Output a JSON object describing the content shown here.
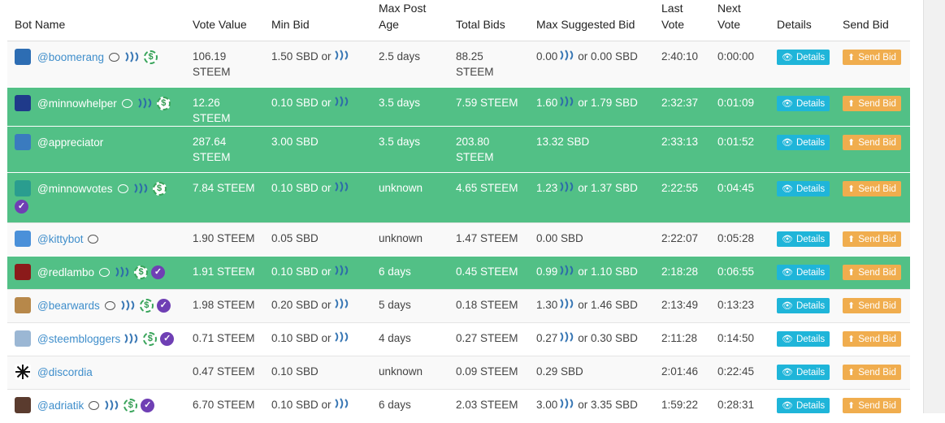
{
  "headers": {
    "bot_name": "Bot Name",
    "vote_value": "Vote Value",
    "min_bid": "Min Bid",
    "max_post_age": "Max Post Age",
    "total_bids": "Total Bids",
    "max_suggested_bid": "Max Suggested Bid",
    "last_vote": "Last Vote",
    "next_vote": "Next Vote",
    "details": "Details",
    "send_bid": "Send Bid"
  },
  "buttons": {
    "details": "Details",
    "send_bid": "Send Bid"
  },
  "colors": {
    "green_row": "#52c086",
    "details_btn": "#1fb5d9",
    "send_btn": "#f0ad4e",
    "link": "#3f8ecb",
    "verified": "#6f3fb4"
  },
  "rows": [
    {
      "name": "@boomerang",
      "style": "white",
      "avatar_color": "#2d6db3",
      "icons": [
        "chat",
        "steem",
        "dollar"
      ],
      "vote_value": "106.19 STEEM",
      "min_bid": "1.50 SBD or",
      "min_bid_steem": true,
      "max_age": "2.5 days",
      "total_bids": "88.25 STEEM",
      "max_suggested_a": "0.00",
      "max_suggested_steem": true,
      "max_suggested_b": "or 0.00 SBD",
      "last_vote": "2:40:10",
      "next_vote": "0:00:00"
    },
    {
      "name": "@minnowhelper",
      "style": "green",
      "avatar_color": "#1f3a8a",
      "icons": [
        "chat",
        "steem",
        "dollar"
      ],
      "vote_value": "12.26 STEEM",
      "min_bid": "0.10 SBD or",
      "min_bid_steem": true,
      "max_age": "3.5 days",
      "total_bids": "7.59 STEEM",
      "max_suggested_a": "1.60",
      "max_suggested_steem": true,
      "max_suggested_b": "or 1.79 SBD",
      "last_vote": "2:32:37",
      "next_vote": "0:01:09"
    },
    {
      "name": "@appreciator",
      "style": "green",
      "avatar_color": "#3a7bbf",
      "icons": [],
      "vote_value": "287.64 STEEM",
      "min_bid": "3.00 SBD",
      "min_bid_steem": false,
      "max_age": "3.5 days",
      "total_bids": "203.80 STEEM",
      "max_suggested_a": "13.32 SBD",
      "max_suggested_steem": false,
      "max_suggested_b": "",
      "last_vote": "2:33:13",
      "next_vote": "0:01:52"
    },
    {
      "name": "@minnowvotes",
      "style": "green",
      "avatar_color": "#2a9d8f",
      "icons": [
        "chat",
        "steem",
        "dollar",
        "verified"
      ],
      "vote_value": "7.84 STEEM",
      "min_bid": "0.10 SBD or",
      "min_bid_steem": true,
      "max_age": "unknown",
      "total_bids": "4.65 STEEM",
      "max_suggested_a": "1.23",
      "max_suggested_steem": true,
      "max_suggested_b": "or 1.37 SBD",
      "last_vote": "2:22:55",
      "next_vote": "0:04:45"
    },
    {
      "name": "@kittybot",
      "style": "white",
      "avatar_color": "#4a90d9",
      "icons": [
        "chat"
      ],
      "vote_value": "1.90 STEEM",
      "min_bid": "0.05 SBD",
      "min_bid_steem": false,
      "max_age": "unknown",
      "total_bids": "1.47 STEEM",
      "max_suggested_a": "0.00 SBD",
      "max_suggested_steem": false,
      "max_suggested_b": "",
      "last_vote": "2:22:07",
      "next_vote": "0:05:28"
    },
    {
      "name": "@redlambo",
      "style": "green",
      "avatar_color": "#8b1a1a",
      "icons": [
        "chat",
        "steem",
        "dollar",
        "verified"
      ],
      "vote_value": "1.91 STEEM",
      "min_bid": "0.10 SBD or",
      "min_bid_steem": true,
      "max_age": "6 days",
      "total_bids": "0.45 STEEM",
      "max_suggested_a": "0.99",
      "max_suggested_steem": true,
      "max_suggested_b": "or 1.10 SBD",
      "last_vote": "2:18:28",
      "next_vote": "0:06:55"
    },
    {
      "name": "@bearwards",
      "style": "white",
      "avatar_color": "#b7884a",
      "icons": [
        "chat",
        "steem",
        "dollar",
        "verified"
      ],
      "vote_value": "1.98 STEEM",
      "min_bid": "0.20 SBD or",
      "min_bid_steem": true,
      "max_age": "5 days",
      "total_bids": "0.18 STEEM",
      "max_suggested_a": "1.30",
      "max_suggested_steem": true,
      "max_suggested_b": "or 1.46 SBD",
      "last_vote": "2:13:49",
      "next_vote": "0:13:23"
    },
    {
      "name": "@steembloggers",
      "style": "white alt",
      "avatar_color": "#9bb7d4",
      "icons": [
        "steem",
        "dollar",
        "verified"
      ],
      "vote_value": "0.71 STEEM",
      "min_bid": "0.10 SBD or",
      "min_bid_steem": true,
      "max_age": "4 days",
      "total_bids": "0.27 STEEM",
      "max_suggested_a": "0.27",
      "max_suggested_steem": true,
      "max_suggested_b": "or 0.30 SBD",
      "last_vote": "2:11:28",
      "next_vote": "0:14:50"
    },
    {
      "name": "@discordia",
      "style": "white",
      "avatar_color": "#ffffff",
      "icons": [],
      "vote_value": "0.47 STEEM",
      "min_bid": "0.10 SBD",
      "min_bid_steem": false,
      "max_age": "unknown",
      "total_bids": "0.09 STEEM",
      "max_suggested_a": "0.29 SBD",
      "max_suggested_steem": false,
      "max_suggested_b": "",
      "last_vote": "2:01:46",
      "next_vote": "0:22:45"
    },
    {
      "name": "@adriatik",
      "style": "white alt",
      "avatar_color": "#5a3b2e",
      "icons": [
        "chat",
        "steem",
        "dollar",
        "verified"
      ],
      "vote_value": "6.70 STEEM",
      "min_bid": "0.10 SBD or",
      "min_bid_steem": true,
      "max_age": "6 days",
      "total_bids": "2.03 STEEM",
      "max_suggested_a": "3.00",
      "max_suggested_steem": true,
      "max_suggested_b": "or 3.35 SBD",
      "last_vote": "1:59:22",
      "next_vote": "0:28:31"
    }
  ]
}
